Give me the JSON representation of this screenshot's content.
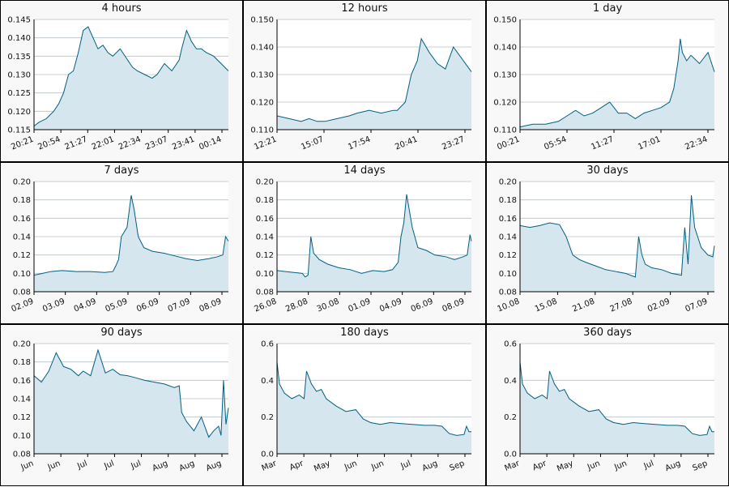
{
  "colors": {
    "line": "#006080",
    "fill": "#d6e6ee",
    "grid": "#b8c2c8",
    "axis": "#000000",
    "plot_bg": "#ffffff"
  },
  "chart_data": [
    {
      "type": "area",
      "title": "4 hours",
      "ylim": [
        0.115,
        0.145
      ],
      "y_ticks": [
        0.115,
        0.12,
        0.125,
        0.13,
        0.135,
        0.14,
        0.145
      ],
      "y_ticklabels": [
        "0.115",
        "0.120",
        "0.125",
        "0.130",
        "0.135",
        "0.140",
        "0.145"
      ],
      "x_ticklabels": [
        "20:21",
        "20:54",
        "21:27",
        "22:01",
        "22:34",
        "23:07",
        "23:41",
        "00:14"
      ],
      "x_range": [
        0,
        7.9
      ],
      "series": [
        {
          "x": [
            0,
            0.2,
            0.5,
            0.8,
            1.0,
            1.2,
            1.4,
            1.6,
            1.8,
            2.0,
            2.2,
            2.4,
            2.6,
            2.8,
            3.0,
            3.2,
            3.5,
            3.8,
            4.0,
            4.2,
            4.5,
            4.8,
            5.0,
            5.3,
            5.6,
            5.9,
            6.0,
            6.2,
            6.4,
            6.6,
            6.8,
            7.0,
            7.3,
            7.6,
            7.9
          ],
          "y": [
            0.116,
            0.117,
            0.118,
            0.12,
            0.122,
            0.125,
            0.13,
            0.131,
            0.136,
            0.142,
            0.143,
            0.14,
            0.137,
            0.138,
            0.136,
            0.135,
            0.137,
            0.134,
            0.132,
            0.131,
            0.13,
            0.129,
            0.13,
            0.133,
            0.131,
            0.134,
            0.137,
            0.142,
            0.139,
            0.137,
            0.137,
            0.136,
            0.135,
            0.133,
            0.131
          ]
        }
      ]
    },
    {
      "type": "area",
      "title": "12 hours",
      "ylim": [
        0.11,
        0.15
      ],
      "y_ticks": [
        0.11,
        0.12,
        0.13,
        0.14,
        0.15
      ],
      "y_ticklabels": [
        "0.110",
        "0.120",
        "0.130",
        "0.140",
        "0.150"
      ],
      "x_ticklabels": [
        "12:21",
        "15:07",
        "17:54",
        "20:41",
        "23:27"
      ],
      "x_range": [
        0,
        4.85
      ],
      "series": [
        {
          "x": [
            0,
            0.3,
            0.6,
            0.8,
            1.0,
            1.2,
            1.5,
            1.8,
            2.0,
            2.3,
            2.6,
            2.9,
            3.0,
            3.2,
            3.35,
            3.5,
            3.6,
            3.8,
            4.0,
            4.2,
            4.4,
            4.6,
            4.85
          ],
          "y": [
            0.115,
            0.114,
            0.113,
            0.114,
            0.113,
            0.113,
            0.114,
            0.115,
            0.116,
            0.117,
            0.116,
            0.117,
            0.117,
            0.12,
            0.13,
            0.135,
            0.143,
            0.138,
            0.134,
            0.132,
            0.14,
            0.136,
            0.131
          ]
        }
      ]
    },
    {
      "type": "area",
      "title": "1 day",
      "ylim": [
        0.11,
        0.15
      ],
      "y_ticks": [
        0.11,
        0.12,
        0.13,
        0.14,
        0.15
      ],
      "y_ticklabels": [
        "0.110",
        "0.120",
        "0.130",
        "0.140",
        "0.150"
      ],
      "x_ticklabels": [
        "00:21",
        "05:54",
        "11:27",
        "17:01",
        "22:34"
      ],
      "x_range": [
        0,
        4.55
      ],
      "series": [
        {
          "x": [
            0,
            0.3,
            0.6,
            0.9,
            1.1,
            1.3,
            1.5,
            1.7,
            1.9,
            2.1,
            2.3,
            2.5,
            2.7,
            2.9,
            3.1,
            3.3,
            3.5,
            3.6,
            3.7,
            3.75,
            3.8,
            3.9,
            4.0,
            4.2,
            4.4,
            4.55
          ],
          "y": [
            0.111,
            0.112,
            0.112,
            0.113,
            0.115,
            0.117,
            0.115,
            0.116,
            0.118,
            0.12,
            0.116,
            0.116,
            0.114,
            0.116,
            0.117,
            0.118,
            0.12,
            0.125,
            0.135,
            0.143,
            0.138,
            0.135,
            0.137,
            0.134,
            0.138,
            0.131
          ]
        }
      ]
    },
    {
      "type": "area",
      "title": "7 days",
      "ylim": [
        0.08,
        0.2
      ],
      "y_ticks": [
        0.08,
        0.1,
        0.12,
        0.14,
        0.16,
        0.18,
        0.2
      ],
      "y_ticklabels": [
        "0.08",
        "0.10",
        "0.12",
        "0.14",
        "0.16",
        "0.18",
        "0.20"
      ],
      "x_ticklabels": [
        "02.09",
        "03.09",
        "04.09",
        "05.09",
        "06.09",
        "07.09",
        "08.09"
      ],
      "x_range": [
        0,
        6.9
      ],
      "series": [
        {
          "x": [
            0,
            0.3,
            0.6,
            1.0,
            1.5,
            2.0,
            2.5,
            2.8,
            2.9,
            3.0,
            3.1,
            3.3,
            3.45,
            3.55,
            3.7,
            3.9,
            4.2,
            4.6,
            5.0,
            5.4,
            5.8,
            6.2,
            6.5,
            6.7,
            6.8,
            6.9
          ],
          "y": [
            0.098,
            0.1,
            0.102,
            0.103,
            0.102,
            0.102,
            0.101,
            0.102,
            0.108,
            0.115,
            0.14,
            0.15,
            0.185,
            0.17,
            0.14,
            0.128,
            0.124,
            0.122,
            0.119,
            0.116,
            0.114,
            0.116,
            0.118,
            0.12,
            0.14,
            0.135
          ]
        }
      ]
    },
    {
      "type": "area",
      "title": "14 days",
      "ylim": [
        0.08,
        0.2
      ],
      "y_ticks": [
        0.08,
        0.1,
        0.12,
        0.14,
        0.16,
        0.18,
        0.2
      ],
      "y_ticklabels": [
        "0.08",
        "0.10",
        "0.12",
        "0.14",
        "0.16",
        "0.18",
        "0.20"
      ],
      "x_ticklabels": [
        "26.08",
        "28.08",
        "30.08",
        "01.09",
        "04.09",
        "06.09",
        "08.09"
      ],
      "x_range": [
        0,
        6.9
      ],
      "series": [
        {
          "x": [
            0,
            0.3,
            0.6,
            0.9,
            1.0,
            1.1,
            1.2,
            1.3,
            1.5,
            1.8,
            2.2,
            2.6,
            3.0,
            3.4,
            3.8,
            4.1,
            4.3,
            4.4,
            4.5,
            4.6,
            4.8,
            5.0,
            5.3,
            5.6,
            6.0,
            6.3,
            6.6,
            6.75,
            6.85,
            6.9
          ],
          "y": [
            0.103,
            0.102,
            0.101,
            0.1,
            0.096,
            0.098,
            0.14,
            0.122,
            0.115,
            0.11,
            0.106,
            0.104,
            0.1,
            0.103,
            0.102,
            0.104,
            0.112,
            0.14,
            0.155,
            0.186,
            0.15,
            0.128,
            0.125,
            0.12,
            0.118,
            0.115,
            0.118,
            0.12,
            0.142,
            0.135
          ]
        }
      ]
    },
    {
      "type": "area",
      "title": "30 days",
      "ylim": [
        0.08,
        0.2
      ],
      "y_ticks": [
        0.08,
        0.1,
        0.12,
        0.14,
        0.16,
        0.18,
        0.2
      ],
      "y_ticklabels": [
        "0.08",
        "0.10",
        "0.12",
        "0.14",
        "0.16",
        "0.18",
        "0.20"
      ],
      "x_ticklabels": [
        "10.08",
        "15.08",
        "21.08",
        "27.08",
        "02.09",
        "07.09"
      ],
      "x_range": [
        0,
        5.9
      ],
      "series": [
        {
          "x": [
            0,
            0.3,
            0.6,
            0.9,
            1.2,
            1.4,
            1.6,
            1.8,
            2.0,
            2.3,
            2.6,
            2.9,
            3.2,
            3.5,
            3.6,
            3.7,
            3.8,
            4.0,
            4.3,
            4.6,
            4.9,
            5.0,
            5.1,
            5.2,
            5.3,
            5.5,
            5.7,
            5.85,
            5.9
          ],
          "y": [
            0.152,
            0.15,
            0.152,
            0.155,
            0.153,
            0.14,
            0.12,
            0.115,
            0.112,
            0.108,
            0.104,
            0.102,
            0.1,
            0.096,
            0.14,
            0.12,
            0.11,
            0.106,
            0.104,
            0.1,
            0.098,
            0.15,
            0.11,
            0.185,
            0.15,
            0.128,
            0.12,
            0.118,
            0.13
          ]
        }
      ]
    },
    {
      "type": "area",
      "title": "90 days",
      "ylim": [
        0.08,
        0.2
      ],
      "y_ticks": [
        0.08,
        0.1,
        0.12,
        0.14,
        0.16,
        0.18,
        0.2
      ],
      "y_ticklabels": [
        "0.08",
        "0.10",
        "0.12",
        "0.14",
        "0.16",
        "0.18",
        "0.20"
      ],
      "x_ticklabels": [
        "Jun",
        "Jun",
        "Jul",
        "Jul",
        "Jul",
        "Aug",
        "Aug",
        "Aug"
      ],
      "x_range": [
        0,
        7.9
      ],
      "series": [
        {
          "x": [
            0,
            0.3,
            0.6,
            0.9,
            1.2,
            1.5,
            1.8,
            2.0,
            2.3,
            2.6,
            2.9,
            3.2,
            3.5,
            3.8,
            4.1,
            4.5,
            4.9,
            5.3,
            5.7,
            5.9,
            6.0,
            6.2,
            6.5,
            6.8,
            7.1,
            7.3,
            7.5,
            7.6,
            7.7,
            7.8,
            7.9
          ],
          "y": [
            0.165,
            0.158,
            0.17,
            0.19,
            0.175,
            0.172,
            0.165,
            0.17,
            0.165,
            0.193,
            0.168,
            0.172,
            0.166,
            0.165,
            0.163,
            0.16,
            0.158,
            0.156,
            0.152,
            0.154,
            0.125,
            0.115,
            0.105,
            0.12,
            0.098,
            0.105,
            0.11,
            0.1,
            0.16,
            0.112,
            0.13
          ]
        }
      ]
    },
    {
      "type": "area",
      "title": "180 days",
      "ylim": [
        0.0,
        0.6
      ],
      "y_ticks": [
        0.0,
        0.2,
        0.4,
        0.6
      ],
      "y_ticklabels": [
        "0.0",
        "0.2",
        "0.4",
        "0.6"
      ],
      "x_ticklabels": [
        "Mar",
        "Apr",
        "May",
        "Jun",
        "Jun",
        "Jul",
        "Aug",
        "Sep"
      ],
      "x_range": [
        0,
        7.9
      ],
      "series": [
        {
          "x": [
            0,
            0.1,
            0.3,
            0.6,
            0.9,
            1.1,
            1.2,
            1.4,
            1.6,
            1.8,
            2.0,
            2.4,
            2.8,
            3.2,
            3.5,
            3.8,
            4.2,
            4.6,
            5.0,
            5.5,
            6.0,
            6.4,
            6.7,
            7.0,
            7.3,
            7.6,
            7.7,
            7.8,
            7.9
          ],
          "y": [
            0.5,
            0.38,
            0.33,
            0.3,
            0.32,
            0.3,
            0.45,
            0.38,
            0.34,
            0.35,
            0.3,
            0.26,
            0.23,
            0.24,
            0.19,
            0.17,
            0.16,
            0.17,
            0.165,
            0.16,
            0.155,
            0.155,
            0.15,
            0.11,
            0.1,
            0.105,
            0.15,
            0.12,
            0.12
          ]
        }
      ]
    },
    {
      "type": "area",
      "title": "360 days",
      "ylim": [
        0.0,
        0.6
      ],
      "y_ticks": [
        0.0,
        0.2,
        0.4,
        0.6
      ],
      "y_ticklabels": [
        "0.0",
        "0.2",
        "0.4",
        "0.6"
      ],
      "x_ticklabels": [
        "Mar",
        "Apr",
        "May",
        "Jun",
        "Jun",
        "Jul",
        "Aug",
        "Sep"
      ],
      "x_range": [
        0,
        7.9
      ],
      "series": [
        {
          "x": [
            0,
            0.1,
            0.3,
            0.6,
            0.9,
            1.1,
            1.2,
            1.4,
            1.6,
            1.8,
            2.0,
            2.4,
            2.8,
            3.2,
            3.5,
            3.8,
            4.2,
            4.6,
            5.0,
            5.5,
            6.0,
            6.4,
            6.7,
            7.0,
            7.3,
            7.6,
            7.7,
            7.8,
            7.9
          ],
          "y": [
            0.5,
            0.38,
            0.33,
            0.3,
            0.32,
            0.3,
            0.45,
            0.38,
            0.34,
            0.35,
            0.3,
            0.26,
            0.23,
            0.24,
            0.19,
            0.17,
            0.16,
            0.17,
            0.165,
            0.16,
            0.155,
            0.155,
            0.15,
            0.11,
            0.1,
            0.105,
            0.15,
            0.12,
            0.12
          ]
        }
      ]
    }
  ]
}
